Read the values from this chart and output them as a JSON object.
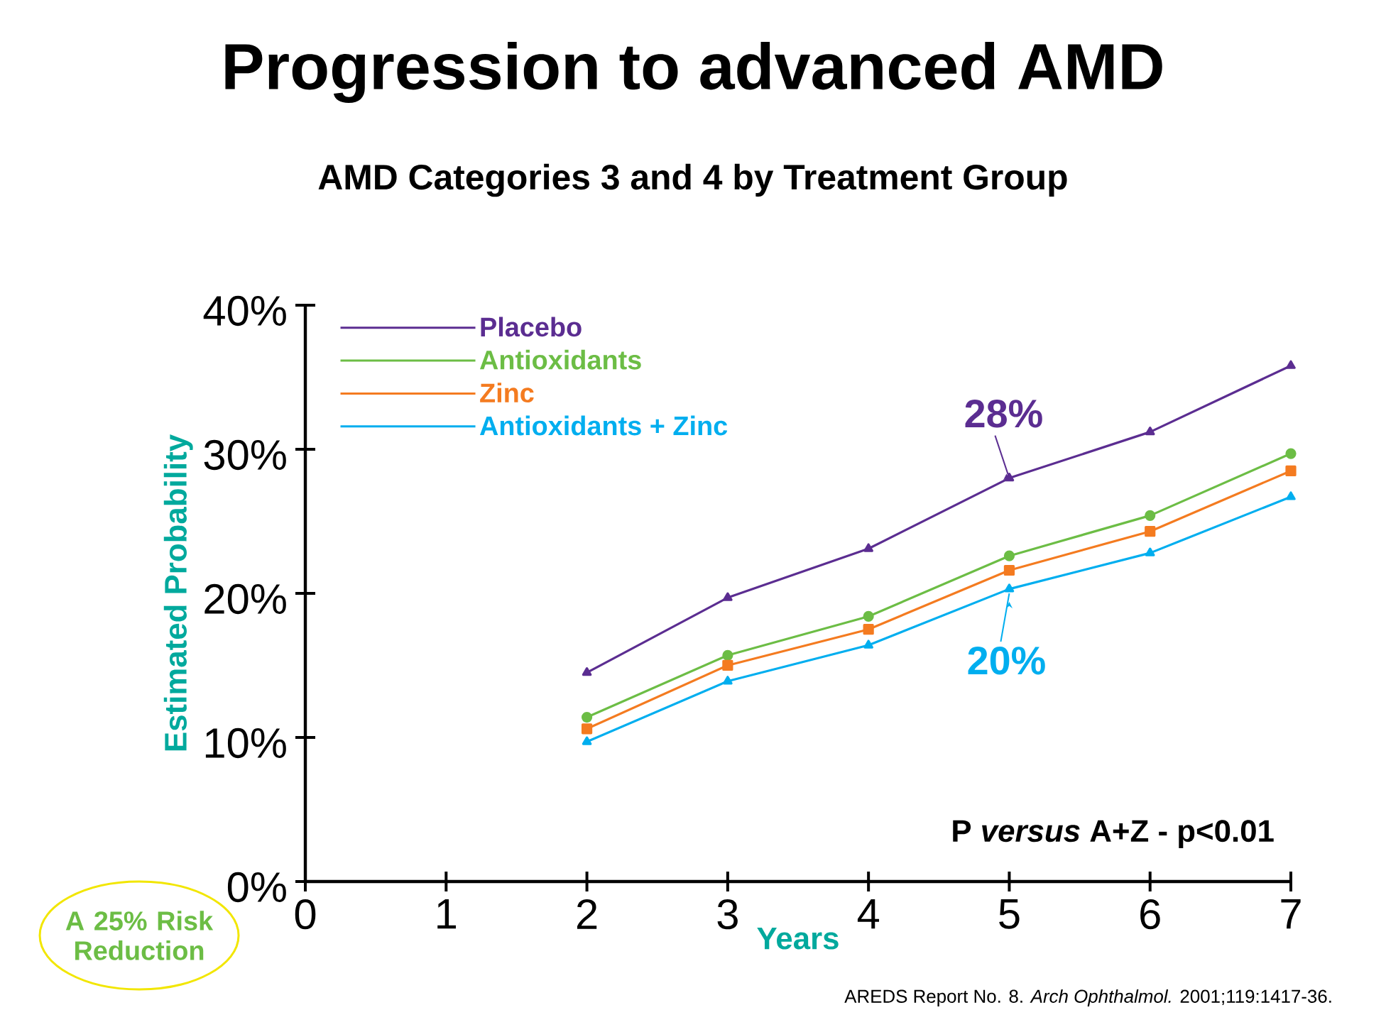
{
  "chart_data": {
    "type": "line",
    "title": "Progression to advanced AMD",
    "subtitle": "AMD Categories 3 and 4 by Treatment Group",
    "xlabel": "Years",
    "ylabel": "Estimated Probability",
    "x": [
      2,
      3,
      4,
      5,
      6,
      7
    ],
    "series": [
      {
        "name": "Placebo",
        "color": "#5b2d91",
        "marker": "triangle",
        "values": [
          14.5,
          19.7,
          23.1,
          28.0,
          31.2,
          35.8
        ]
      },
      {
        "name": "Antioxidants",
        "color": "#6cbd45",
        "marker": "circle",
        "values": [
          11.4,
          15.7,
          18.4,
          22.6,
          25.4,
          29.7
        ]
      },
      {
        "name": "Zinc",
        "color": "#f47b20",
        "marker": "square",
        "values": [
          10.6,
          15.0,
          17.5,
          21.6,
          24.3,
          28.5
        ]
      },
      {
        "name": "Antioxidants + Zinc",
        "color": "#00aeef",
        "marker": "triangle",
        "values": [
          9.7,
          13.9,
          16.4,
          20.3,
          22.8,
          26.7
        ]
      }
    ],
    "xlim": [
      0,
      7
    ],
    "xticks": [
      0,
      1,
      2,
      3,
      4,
      5,
      6,
      7
    ],
    "ylim": [
      0,
      40
    ],
    "yticks": [
      {
        "value": 0,
        "label": "0%"
      },
      {
        "value": 10,
        "label": "10%"
      },
      {
        "value": 20,
        "label": "20%"
      },
      {
        "value": 30,
        "label": "30%"
      },
      {
        "value": 40,
        "label": "40%"
      }
    ],
    "grid": false,
    "legend": "top left",
    "annotations": [
      {
        "text": "28%",
        "x": 5,
        "y": 28
      },
      {
        "text": "20%",
        "x": 5,
        "y": 20
      },
      "P *versus* A+Z - p<0.01",
      "A 25% Risk Reduction",
      "AREDS Report No. 8. *Arch Ophthalmol.* 2001;119:1417-36."
    ]
  }
}
